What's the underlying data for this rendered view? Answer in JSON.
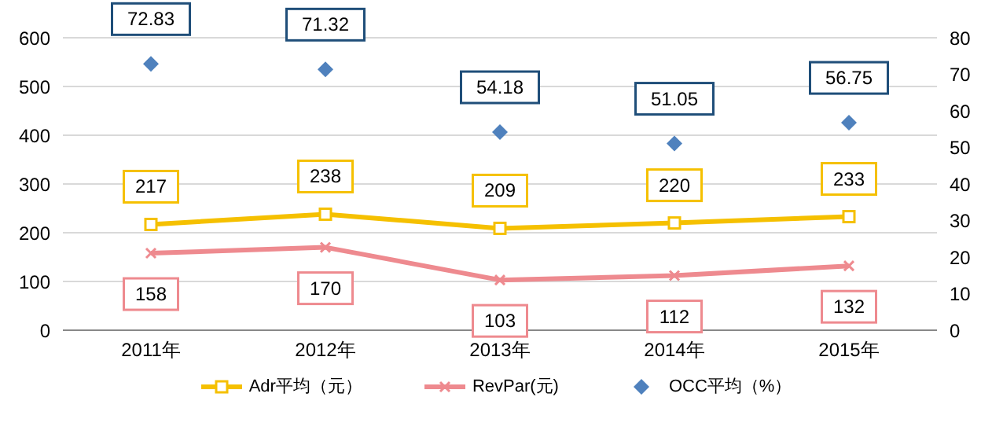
{
  "chart_data": {
    "type": "line",
    "categories": [
      "2011年",
      "2012年",
      "2013年",
      "2014年",
      "2015年"
    ],
    "series": [
      {
        "name": "Adr平均（元）",
        "color": "#f5c000",
        "marker": "square",
        "values": [
          217,
          238,
          209,
          220,
          233
        ]
      },
      {
        "name": "RevPar(元)",
        "color": "#ee8a8f",
        "marker": "cross",
        "values": [
          158,
          170,
          103,
          112,
          132
        ]
      },
      {
        "name": "OCC平均（%）",
        "type": "scatter",
        "color": "#4f81bd",
        "marker": "diamond",
        "axis": "y2",
        "values": [
          72.83,
          71.32,
          54.18,
          51.05,
          56.75
        ]
      }
    ],
    "ylim": [
      0,
      600
    ],
    "yticks": [
      0,
      100,
      200,
      300,
      400,
      500,
      600
    ],
    "y2lim": [
      0,
      80
    ],
    "y2ticks": [
      0,
      10,
      20,
      30,
      40,
      50,
      60,
      70,
      80
    ],
    "grid": "y",
    "legend": "bottom",
    "data_labels": true
  }
}
